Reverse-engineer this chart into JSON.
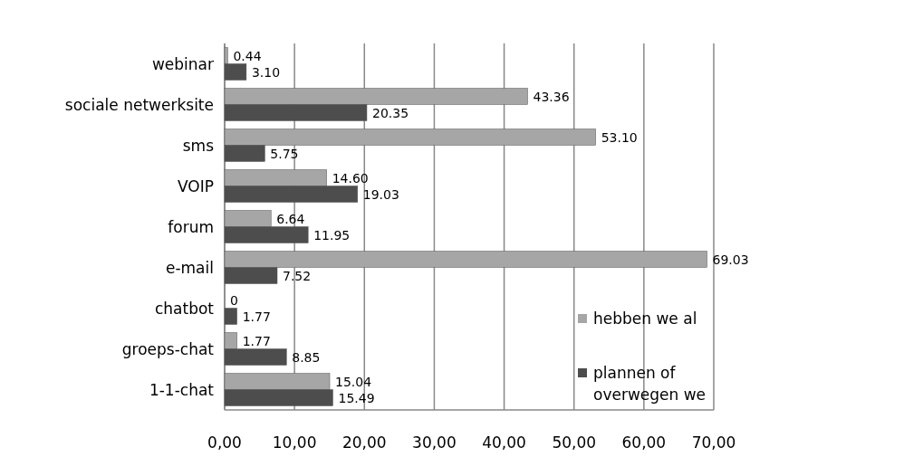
{
  "chart_data": {
    "type": "bar",
    "orientation": "horizontal",
    "categories": [
      "webinar",
      "sociale netwerksite",
      "sms",
      "VOIP",
      "forum",
      "e-mail",
      "chatbot",
      "groeps-chat",
      "1-1-chat"
    ],
    "series": [
      {
        "name": "hebben we al",
        "color": "#a6a6a6",
        "values": [
          0.44,
          43.36,
          53.1,
          14.6,
          6.64,
          69.03,
          0,
          1.77,
          15.04
        ],
        "value_labels": [
          "0.44",
          "43.36",
          "53.10",
          "14.60",
          "6.64",
          "69.03",
          "0",
          "1.77",
          "15.04"
        ]
      },
      {
        "name": "plannen of overwegen we",
        "color": "#4d4d4d",
        "values": [
          3.1,
          20.35,
          5.75,
          19.03,
          11.95,
          7.52,
          1.77,
          8.85,
          15.49
        ],
        "value_labels": [
          "3.10",
          "20.35",
          "5.75",
          "19.03",
          "11.95",
          "7.52",
          "1.77",
          "8.85",
          "15.49"
        ]
      }
    ],
    "xlim": [
      0,
      70
    ],
    "xticks": [
      {
        "value": 0,
        "label": "0,00"
      },
      {
        "value": 10,
        "label": "10,00"
      },
      {
        "value": 20,
        "label": "20,00"
      },
      {
        "value": 30,
        "label": "30,00"
      },
      {
        "value": 40,
        "label": "40,00"
      },
      {
        "value": 50,
        "label": "50,00"
      },
      {
        "value": 60,
        "label": "60,00"
      },
      {
        "value": 70,
        "label": "70,00"
      }
    ],
    "grid": "x",
    "legend": "right"
  }
}
